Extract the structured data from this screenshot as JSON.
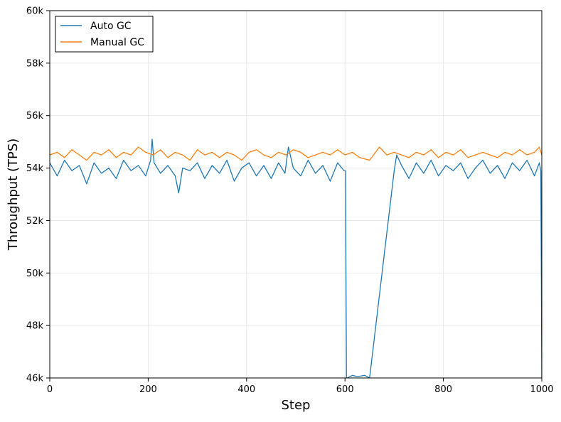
{
  "chart_data": {
    "type": "line",
    "title": "",
    "xlabel": "Step",
    "ylabel": "Throughput (TPS)",
    "xlim": [
      0,
      1000
    ],
    "ylim": [
      46000,
      60000
    ],
    "x_ticks": [
      0,
      200,
      400,
      600,
      800,
      1000
    ],
    "x_tick_labels": [
      "0",
      "200",
      "400",
      "600",
      "800",
      "1000"
    ],
    "y_ticks": [
      46000,
      48000,
      50000,
      52000,
      54000,
      56000,
      58000,
      60000
    ],
    "y_tick_labels": [
      "46k",
      "48k",
      "50k",
      "52k",
      "54k",
      "56k",
      "58k",
      "60k"
    ],
    "grid": true,
    "legend_position": "top-left",
    "series": [
      {
        "name": "Auto GC",
        "color": "#1f77b4",
        "x": [
          0,
          15,
          30,
          45,
          60,
          75,
          90,
          105,
          120,
          135,
          150,
          165,
          180,
          195,
          205,
          208,
          212,
          225,
          240,
          255,
          262,
          270,
          285,
          300,
          315,
          330,
          345,
          360,
          375,
          390,
          405,
          420,
          435,
          450,
          465,
          478,
          485,
          495,
          510,
          525,
          540,
          555,
          570,
          585,
          598,
          601,
          603,
          605,
          615,
          625,
          640,
          650,
          700,
          705,
          715,
          730,
          745,
          760,
          775,
          790,
          805,
          820,
          835,
          850,
          865,
          880,
          895,
          910,
          925,
          940,
          955,
          970,
          985,
          995,
          998,
          1000
        ],
        "y": [
          54200,
          53700,
          54300,
          53900,
          54100,
          53400,
          54200,
          53800,
          54000,
          53600,
          54300,
          53900,
          54100,
          53700,
          54300,
          55100,
          54200,
          53800,
          54100,
          53700,
          53050,
          54000,
          53900,
          54200,
          53600,
          54100,
          53800,
          54300,
          53500,
          54000,
          54200,
          53700,
          54100,
          53600,
          54200,
          53800,
          54800,
          54000,
          53700,
          54300,
          53800,
          54100,
          53500,
          54200,
          53900,
          53900,
          46000,
          46000,
          46100,
          46050,
          46100,
          46000,
          53900,
          54500,
          54100,
          53600,
          54200,
          53800,
          54300,
          53700,
          54100,
          53900,
          54200,
          53600,
          54000,
          54300,
          53800,
          54100,
          53600,
          54200,
          53900,
          54300,
          53700,
          54200,
          53900,
          46000
        ]
      },
      {
        "name": "Manual GC",
        "color": "#ff7f0e",
        "x": [
          0,
          15,
          30,
          45,
          60,
          75,
          90,
          105,
          120,
          135,
          150,
          165,
          180,
          195,
          210,
          225,
          240,
          255,
          270,
          285,
          300,
          315,
          330,
          345,
          360,
          375,
          390,
          405,
          420,
          435,
          450,
          465,
          480,
          495,
          510,
          525,
          540,
          555,
          570,
          585,
          600,
          615,
          630,
          650,
          670,
          685,
          700,
          715,
          730,
          745,
          760,
          775,
          790,
          805,
          820,
          835,
          850,
          865,
          880,
          895,
          910,
          925,
          940,
          955,
          970,
          985,
          995,
          1000
        ],
        "y": [
          54500,
          54600,
          54400,
          54700,
          54500,
          54300,
          54600,
          54500,
          54700,
          54400,
          54600,
          54500,
          54800,
          54600,
          54500,
          54700,
          54400,
          54600,
          54500,
          54300,
          54700,
          54500,
          54600,
          54400,
          54600,
          54500,
          54300,
          54600,
          54700,
          54500,
          54400,
          54600,
          54500,
          54700,
          54600,
          54400,
          54500,
          54600,
          54500,
          54700,
          54500,
          54600,
          54400,
          54300,
          54800,
          54500,
          54600,
          54500,
          54400,
          54600,
          54500,
          54700,
          54400,
          54600,
          54500,
          54700,
          54400,
          54500,
          54600,
          54500,
          54400,
          54600,
          54500,
          54700,
          54500,
          54600,
          54800,
          54500
        ]
      }
    ]
  }
}
